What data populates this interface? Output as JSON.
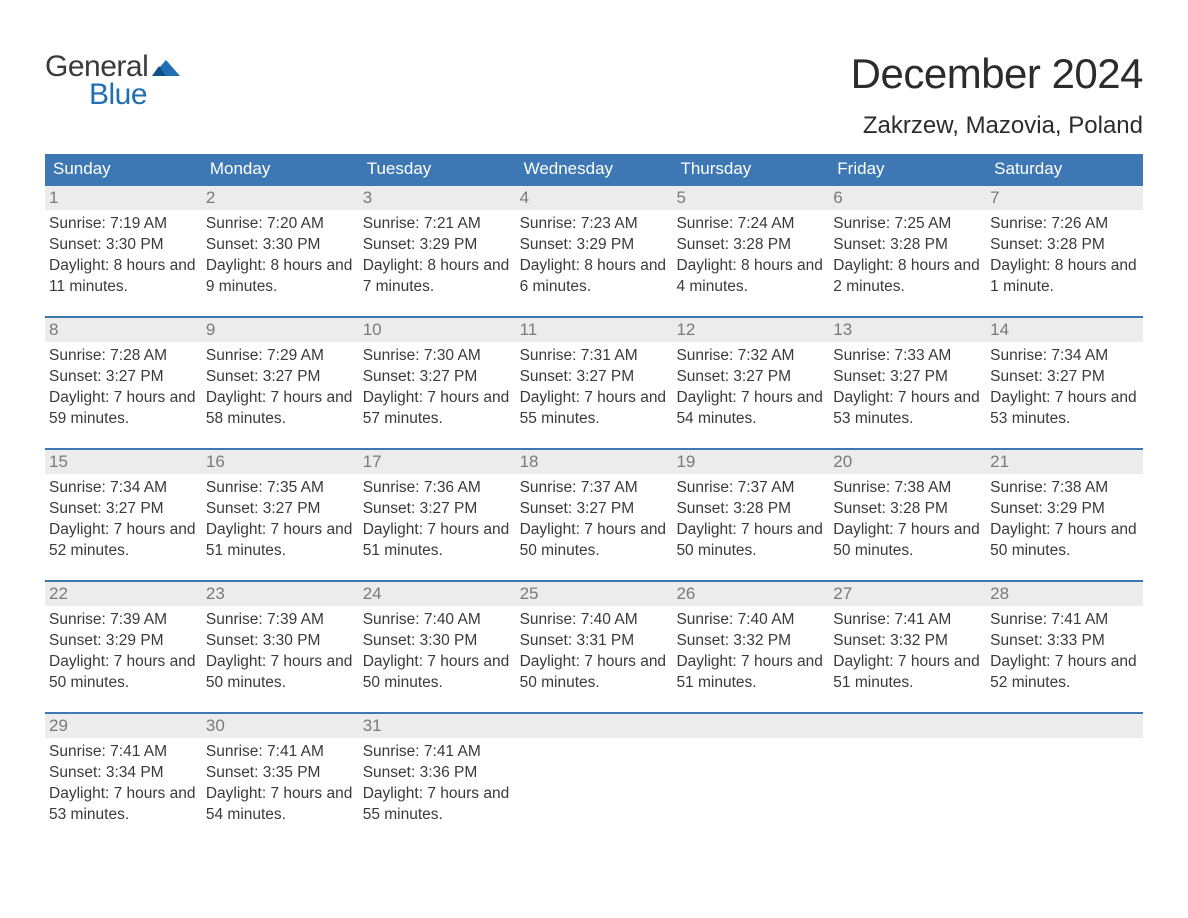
{
  "logo": {
    "general": "General",
    "blue": "Blue",
    "flag_color": "#1f6fb2"
  },
  "title": "December 2024",
  "location": "Zakrzew, Mazovia, Poland",
  "colors": {
    "header_bg": "#3d78b4",
    "header_text": "#ffffff",
    "row_border": "#3d78b4",
    "daynum_bg": "#ececec",
    "daynum_color": "#7a7a7a",
    "body_text": "#3a3a3a",
    "page_bg": "#ffffff",
    "logo_blue": "#1f6fb2",
    "logo_dark": "#3a3a3a"
  },
  "typography": {
    "title_fontsize": 42,
    "location_fontsize": 24,
    "dayhead_fontsize": 17,
    "daynum_fontsize": 17,
    "cell_fontsize": 15.5,
    "logo_fontsize": 30
  },
  "day_headers": [
    "Sunday",
    "Monday",
    "Tuesday",
    "Wednesday",
    "Thursday",
    "Friday",
    "Saturday"
  ],
  "weeks": [
    [
      {
        "n": "1",
        "sunrise": "7:19 AM",
        "sunset": "3:30 PM",
        "daylight": "8 hours and 11 minutes."
      },
      {
        "n": "2",
        "sunrise": "7:20 AM",
        "sunset": "3:30 PM",
        "daylight": "8 hours and 9 minutes."
      },
      {
        "n": "3",
        "sunrise": "7:21 AM",
        "sunset": "3:29 PM",
        "daylight": "8 hours and 7 minutes."
      },
      {
        "n": "4",
        "sunrise": "7:23 AM",
        "sunset": "3:29 PM",
        "daylight": "8 hours and 6 minutes."
      },
      {
        "n": "5",
        "sunrise": "7:24 AM",
        "sunset": "3:28 PM",
        "daylight": "8 hours and 4 minutes."
      },
      {
        "n": "6",
        "sunrise": "7:25 AM",
        "sunset": "3:28 PM",
        "daylight": "8 hours and 2 minutes."
      },
      {
        "n": "7",
        "sunrise": "7:26 AM",
        "sunset": "3:28 PM",
        "daylight": "8 hours and 1 minute."
      }
    ],
    [
      {
        "n": "8",
        "sunrise": "7:28 AM",
        "sunset": "3:27 PM",
        "daylight": "7 hours and 59 minutes."
      },
      {
        "n": "9",
        "sunrise": "7:29 AM",
        "sunset": "3:27 PM",
        "daylight": "7 hours and 58 minutes."
      },
      {
        "n": "10",
        "sunrise": "7:30 AM",
        "sunset": "3:27 PM",
        "daylight": "7 hours and 57 minutes."
      },
      {
        "n": "11",
        "sunrise": "7:31 AM",
        "sunset": "3:27 PM",
        "daylight": "7 hours and 55 minutes."
      },
      {
        "n": "12",
        "sunrise": "7:32 AM",
        "sunset": "3:27 PM",
        "daylight": "7 hours and 54 minutes."
      },
      {
        "n": "13",
        "sunrise": "7:33 AM",
        "sunset": "3:27 PM",
        "daylight": "7 hours and 53 minutes."
      },
      {
        "n": "14",
        "sunrise": "7:34 AM",
        "sunset": "3:27 PM",
        "daylight": "7 hours and 53 minutes."
      }
    ],
    [
      {
        "n": "15",
        "sunrise": "7:34 AM",
        "sunset": "3:27 PM",
        "daylight": "7 hours and 52 minutes."
      },
      {
        "n": "16",
        "sunrise": "7:35 AM",
        "sunset": "3:27 PM",
        "daylight": "7 hours and 51 minutes."
      },
      {
        "n": "17",
        "sunrise": "7:36 AM",
        "sunset": "3:27 PM",
        "daylight": "7 hours and 51 minutes."
      },
      {
        "n": "18",
        "sunrise": "7:37 AM",
        "sunset": "3:27 PM",
        "daylight": "7 hours and 50 minutes."
      },
      {
        "n": "19",
        "sunrise": "7:37 AM",
        "sunset": "3:28 PM",
        "daylight": "7 hours and 50 minutes."
      },
      {
        "n": "20",
        "sunrise": "7:38 AM",
        "sunset": "3:28 PM",
        "daylight": "7 hours and 50 minutes."
      },
      {
        "n": "21",
        "sunrise": "7:38 AM",
        "sunset": "3:29 PM",
        "daylight": "7 hours and 50 minutes."
      }
    ],
    [
      {
        "n": "22",
        "sunrise": "7:39 AM",
        "sunset": "3:29 PM",
        "daylight": "7 hours and 50 minutes."
      },
      {
        "n": "23",
        "sunrise": "7:39 AM",
        "sunset": "3:30 PM",
        "daylight": "7 hours and 50 minutes."
      },
      {
        "n": "24",
        "sunrise": "7:40 AM",
        "sunset": "3:30 PM",
        "daylight": "7 hours and 50 minutes."
      },
      {
        "n": "25",
        "sunrise": "7:40 AM",
        "sunset": "3:31 PM",
        "daylight": "7 hours and 50 minutes."
      },
      {
        "n": "26",
        "sunrise": "7:40 AM",
        "sunset": "3:32 PM",
        "daylight": "7 hours and 51 minutes."
      },
      {
        "n": "27",
        "sunrise": "7:41 AM",
        "sunset": "3:32 PM",
        "daylight": "7 hours and 51 minutes."
      },
      {
        "n": "28",
        "sunrise": "7:41 AM",
        "sunset": "3:33 PM",
        "daylight": "7 hours and 52 minutes."
      }
    ],
    [
      {
        "n": "29",
        "sunrise": "7:41 AM",
        "sunset": "3:34 PM",
        "daylight": "7 hours and 53 minutes."
      },
      {
        "n": "30",
        "sunrise": "7:41 AM",
        "sunset": "3:35 PM",
        "daylight": "7 hours and 54 minutes."
      },
      {
        "n": "31",
        "sunrise": "7:41 AM",
        "sunset": "3:36 PM",
        "daylight": "7 hours and 55 minutes."
      },
      {
        "empty": true
      },
      {
        "empty": true
      },
      {
        "empty": true
      },
      {
        "empty": true
      }
    ]
  ],
  "labels": {
    "sunrise": "Sunrise: ",
    "sunset": "Sunset: ",
    "daylight": "Daylight: "
  }
}
